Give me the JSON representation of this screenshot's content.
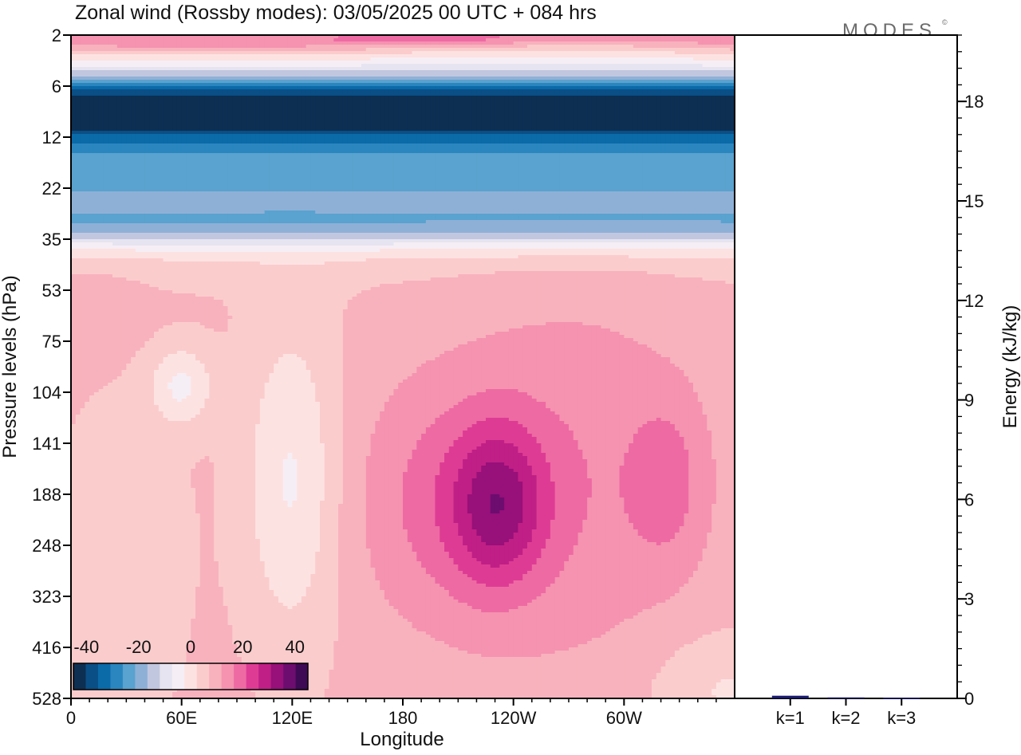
{
  "title": "Zonal wind (Rossby modes):  03/05/2025  00 UTC  + 084 hrs",
  "logo": "MODES",
  "logo_mark": "©",
  "chart_data": [
    {
      "type": "heatmap",
      "title": "Zonal wind (Rossby modes):  03/05/2025  00 UTC  + 084 hrs",
      "xlabel": "Longitude",
      "ylabel": "Pressure levels (hPa)",
      "x_ticks": [
        "0",
        "60E",
        "120E",
        "180",
        "120W",
        "60W"
      ],
      "x_tick_degrees": [
        0,
        60,
        120,
        180,
        240,
        300
      ],
      "x_range_degrees": [
        0,
        360
      ],
      "y_ticks": [
        "2",
        "6",
        "12",
        "22",
        "35",
        "53",
        "75",
        "104",
        "141",
        "188",
        "248",
        "323",
        "416",
        "528"
      ],
      "y_scale": "model levels (top = 2 hPa, bottom = 528 hPa)",
      "colorbar": {
        "tick_labels": [
          "-40",
          "-20",
          "0",
          "20",
          "40"
        ],
        "tick_values": [
          -40,
          -20,
          0,
          20,
          40
        ],
        "levels": [
          -50,
          -45,
          -40,
          -35,
          -30,
          -25,
          -20,
          -15,
          -10,
          -5,
          0,
          5,
          10,
          15,
          20,
          25,
          30,
          35,
          40,
          45,
          50
        ],
        "colors": [
          "#0d2f52",
          "#0a4f86",
          "#0b6aa8",
          "#2b86bf",
          "#5aa2cf",
          "#8fb0d6",
          "#c2c7e0",
          "#e6e4f0",
          "#f6eef5",
          "#fde2e2",
          "#fbcccc",
          "#f8b2bd",
          "#f593b0",
          "#ee6aa3",
          "#de3c94",
          "#c01f86",
          "#98107a",
          "#6d0d6f",
          "#3e0a55"
        ]
      },
      "regions_summary": {
        "near_2hPa": "weak westerlies 0 to 20, strongest around 180-200E",
        "6_to_12hPa": "easterly jet, minimum around -40 to -45",
        "12_to_35hPa": "easterlies weakening upward from -30 to 0",
        "53_to_323hPa": "westerlies up to about 25 near 205E and 10-15 near 300E; weak easterlies near 40E and 90E",
        "323_to_528hPa": "near 0 to 10"
      }
    },
    {
      "type": "bar",
      "categories": [
        "k=1",
        "k=2",
        "k=3"
      ],
      "values": [
        0.08,
        0.03,
        0.02
      ],
      "ylabel": "Energy (kJ/kg)",
      "ylim": [
        0,
        20
      ],
      "y_ticks": [
        "0",
        "3",
        "6",
        "9",
        "12",
        "15",
        "18"
      ],
      "y_tick_values": [
        0,
        3,
        6,
        9,
        12,
        15,
        18
      ],
      "bar_color": "#1a1a6e"
    }
  ]
}
